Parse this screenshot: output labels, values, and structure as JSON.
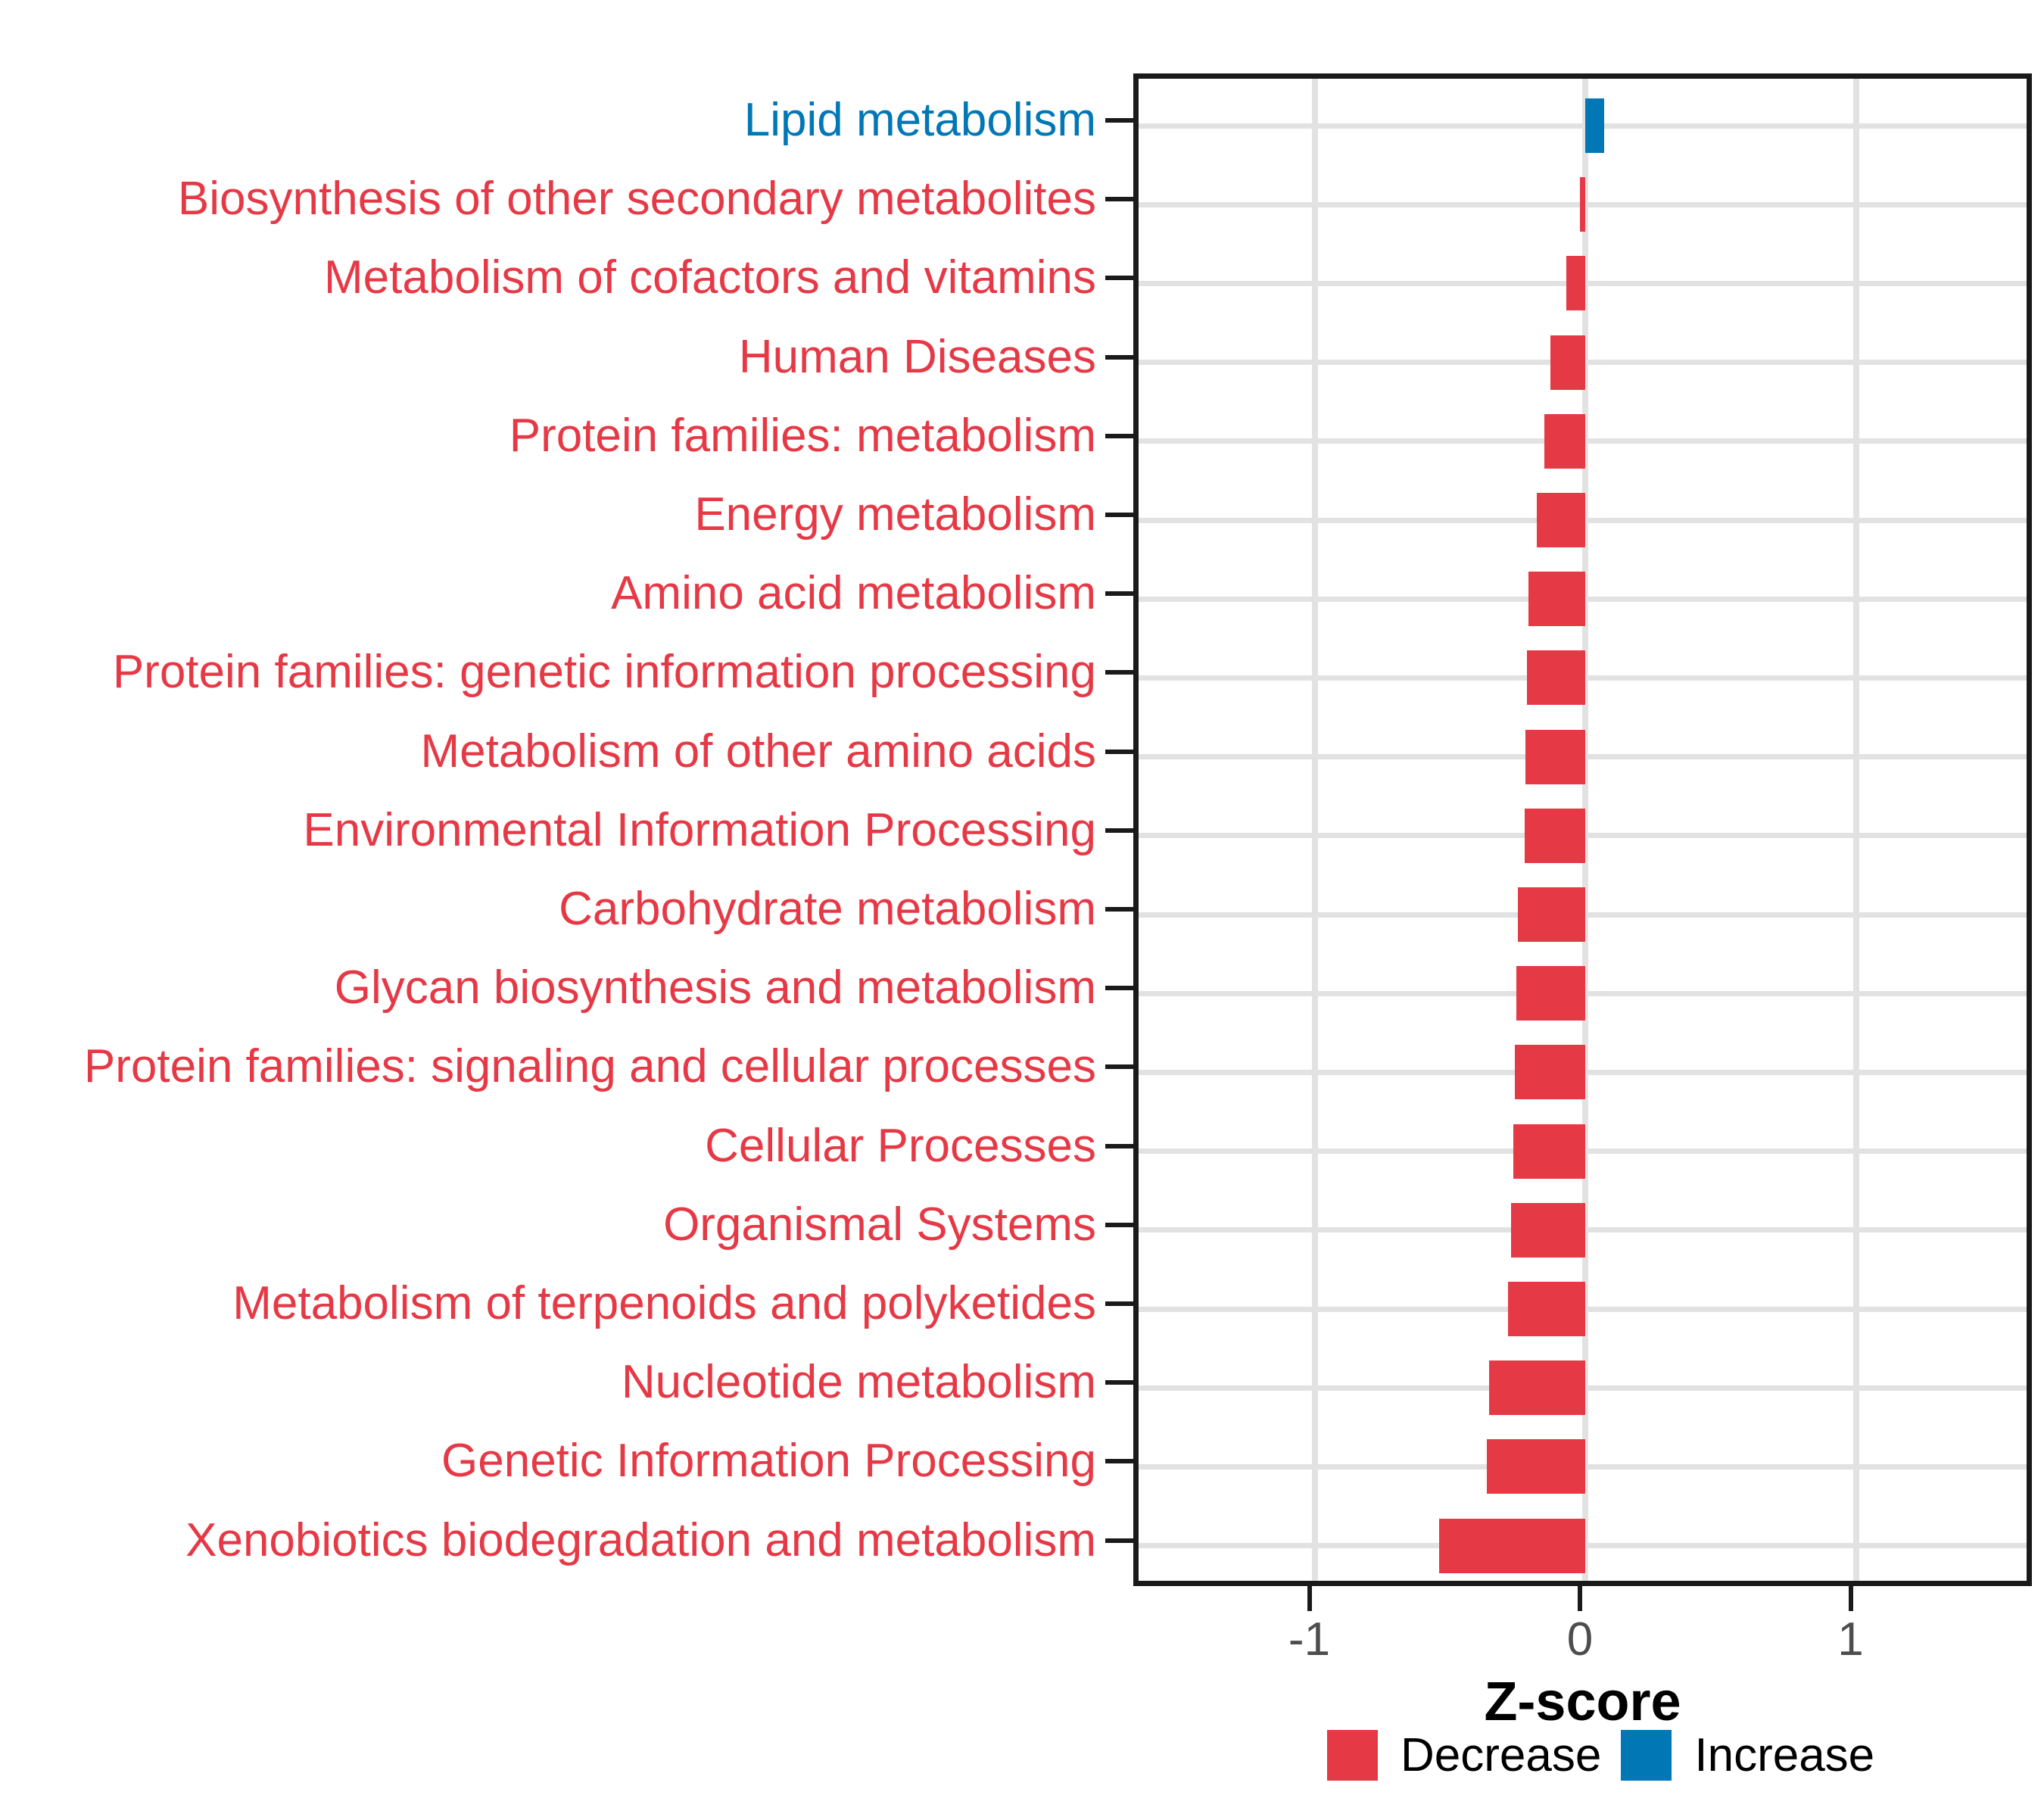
{
  "chart_data": {
    "type": "bar",
    "orientation": "horizontal",
    "title": "",
    "xlabel": "Z-score",
    "ylabel": "",
    "xlim": [
      -1.65,
      1.67
    ],
    "x_ticks": [
      -1,
      0,
      1
    ],
    "x_tick_labels": [
      "-1",
      "0",
      "1"
    ],
    "grid": "major",
    "legend_position": "bottom",
    "categories": [
      "Lipid metabolism",
      "Biosynthesis of other secondary metabolites",
      "Metabolism of cofactors and vitamins",
      "Human Diseases",
      "Protein families: metabolism",
      "Energy metabolism",
      "Amino acid metabolism",
      "Protein families: genetic information processing",
      "Metabolism of other amino acids",
      "Environmental Information Processing",
      "Carbohydrate metabolism",
      "Glycan biosynthesis and metabolism",
      "Protein families: signaling and cellular processes",
      "Cellular Processes",
      "Organismal Systems",
      "Metabolism of terpenoids and polyketides",
      "Nucleotide metabolism",
      "Genetic Information Processing",
      "Xenobiotics biodegradation and metabolism"
    ],
    "values": [
      0.07,
      -0.02,
      -0.07,
      -0.13,
      -0.15,
      -0.18,
      -0.21,
      -0.215,
      -0.22,
      -0.225,
      -0.25,
      -0.255,
      -0.26,
      -0.265,
      -0.275,
      -0.285,
      -0.355,
      -0.365,
      -0.54
    ],
    "directions": [
      "Increase",
      "Decrease",
      "Decrease",
      "Decrease",
      "Decrease",
      "Decrease",
      "Decrease",
      "Decrease",
      "Decrease",
      "Decrease",
      "Decrease",
      "Decrease",
      "Decrease",
      "Decrease",
      "Decrease",
      "Decrease",
      "Decrease",
      "Decrease",
      "Decrease"
    ],
    "series_colors": {
      "Decrease": "#E63946",
      "Increase": "#0277B5"
    }
  },
  "axis": {
    "x_title": "Z-score",
    "tick_label_color": "#4d4d4d"
  },
  "legend": {
    "items": [
      {
        "label": "Decrease",
        "color": "#E63946"
      },
      {
        "label": "Increase",
        "color": "#0277B5"
      }
    ]
  }
}
